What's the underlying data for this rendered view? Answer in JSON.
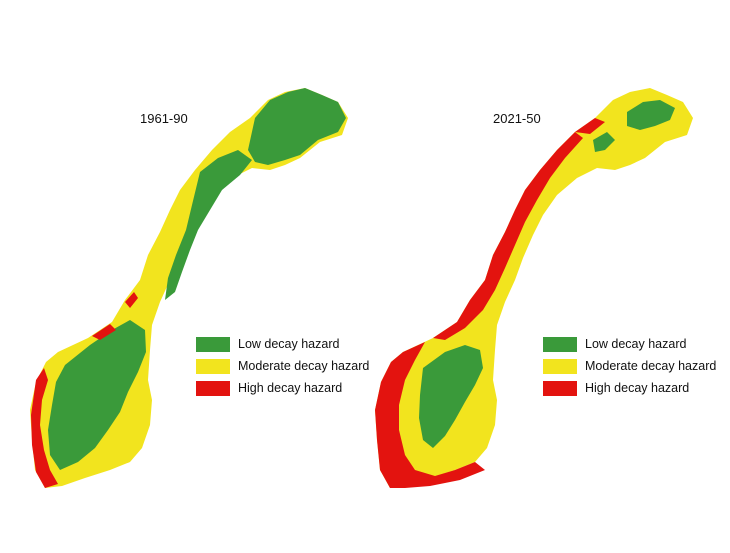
{
  "legend": {
    "items": [
      {
        "label": "Low decay hazard",
        "color": "#3a9a3a"
      },
      {
        "label": "Moderate decay hazard",
        "color": "#f2e41e"
      },
      {
        "label": "High decay hazard",
        "color": "#e3130f"
      }
    ]
  },
  "maps": [
    {
      "period": "1961-90",
      "dominant_class": "Low decay hazard"
    },
    {
      "period": "2021-50",
      "dominant_class": "Moderate decay hazard"
    }
  ]
}
